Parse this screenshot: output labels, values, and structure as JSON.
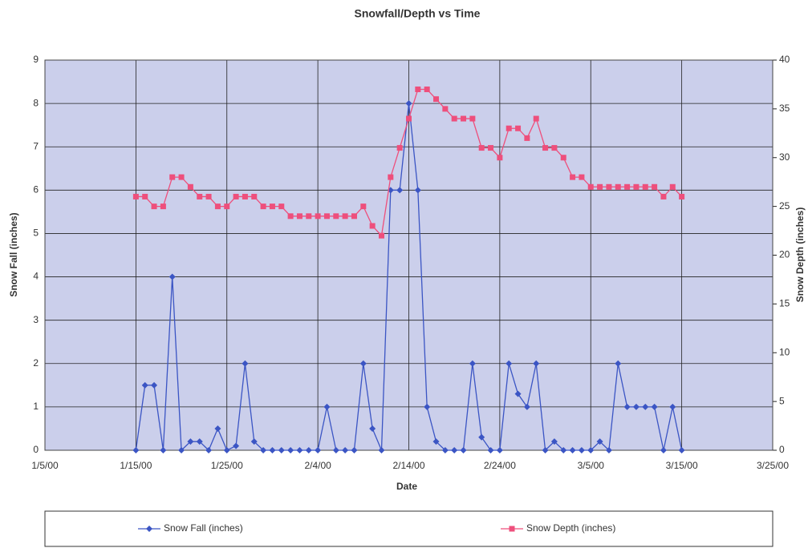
{
  "chart_data": {
    "type": "line",
    "title": "Snowfall/Depth vs Time",
    "x_label": "Date",
    "y_label": "Snow Fall (inches)",
    "y2_label": "Snow Depth (inches)",
    "x": [
      "1/15/00",
      "1/16/00",
      "1/17/00",
      "1/18/00",
      "1/19/00",
      "1/20/00",
      "1/21/00",
      "1/22/00",
      "1/23/00",
      "1/24/00",
      "1/25/00",
      "1/26/00",
      "1/27/00",
      "1/28/00",
      "1/29/00",
      "1/30/00",
      "1/31/00",
      "2/1/00",
      "2/2/00",
      "2/3/00",
      "2/4/00",
      "2/5/00",
      "2/6/00",
      "2/7/00",
      "2/8/00",
      "2/9/00",
      "2/10/00",
      "2/11/00",
      "2/12/00",
      "2/13/00",
      "2/14/00",
      "2/15/00",
      "2/16/00",
      "2/17/00",
      "2/18/00",
      "2/19/00",
      "2/20/00",
      "2/21/00",
      "2/22/00",
      "2/23/00",
      "2/24/00",
      "2/25/00",
      "2/26/00",
      "2/27/00",
      "2/28/00",
      "2/29/00",
      "3/1/00",
      "3/2/00",
      "3/3/00",
      "3/4/00",
      "3/5/00",
      "3/6/00",
      "3/7/00",
      "3/8/00",
      "3/9/00",
      "3/10/00",
      "3/11/00",
      "3/12/00",
      "3/13/00",
      "3/14/00",
      "3/15/00"
    ],
    "series": [
      {
        "name": "Snow Fall (inches)",
        "color": "#3b55c4",
        "marker": "diamond",
        "axis": "y",
        "values": [
          0,
          1.5,
          1.5,
          0,
          4,
          0,
          0.2,
          0.2,
          0,
          0.5,
          0,
          0.1,
          2,
          0.2,
          0,
          0,
          0,
          0,
          0,
          0,
          0,
          1,
          0,
          0,
          0,
          2,
          0.5,
          0,
          6,
          6,
          8,
          6,
          1,
          0.2,
          0,
          0,
          0,
          2,
          0.3,
          0,
          0,
          2,
          1.3,
          1,
          2,
          0,
          0.2,
          0,
          0,
          0,
          0,
          0.2,
          0,
          2,
          1,
          1,
          1,
          1,
          0,
          1,
          0
        ]
      },
      {
        "name": "Snow Depth (inches)",
        "color": "#ee4f7c",
        "marker": "square",
        "axis": "y2",
        "values": [
          26,
          26,
          25,
          25,
          28,
          28,
          27,
          26,
          26,
          25,
          25,
          26,
          26,
          26,
          25,
          25,
          25,
          24,
          24,
          24,
          24,
          24,
          24,
          24,
          24,
          25,
          23,
          22,
          28,
          31,
          34,
          37,
          37,
          36,
          35,
          34,
          34,
          34,
          31,
          31,
          30,
          33,
          33,
          32,
          34,
          31,
          31,
          30,
          28,
          28,
          27,
          27,
          27,
          27,
          27,
          27,
          27,
          27,
          26,
          27,
          26
        ]
      }
    ],
    "xlim": [
      "1/5/00",
      "3/25/00"
    ],
    "xticks": [
      "1/5/00",
      "1/15/00",
      "1/25/00",
      "2/4/00",
      "2/14/00",
      "2/24/00",
      "3/5/00",
      "3/15/00",
      "3/25/00"
    ],
    "ylim": [
      0,
      9
    ],
    "yticks": [
      0,
      1,
      2,
      3,
      4,
      5,
      6,
      7,
      8,
      9
    ],
    "y2lim": [
      0,
      40
    ],
    "y2ticks": [
      0,
      5,
      10,
      15,
      20,
      25,
      30,
      35,
      40
    ],
    "grid": true,
    "legend": "bottom"
  }
}
